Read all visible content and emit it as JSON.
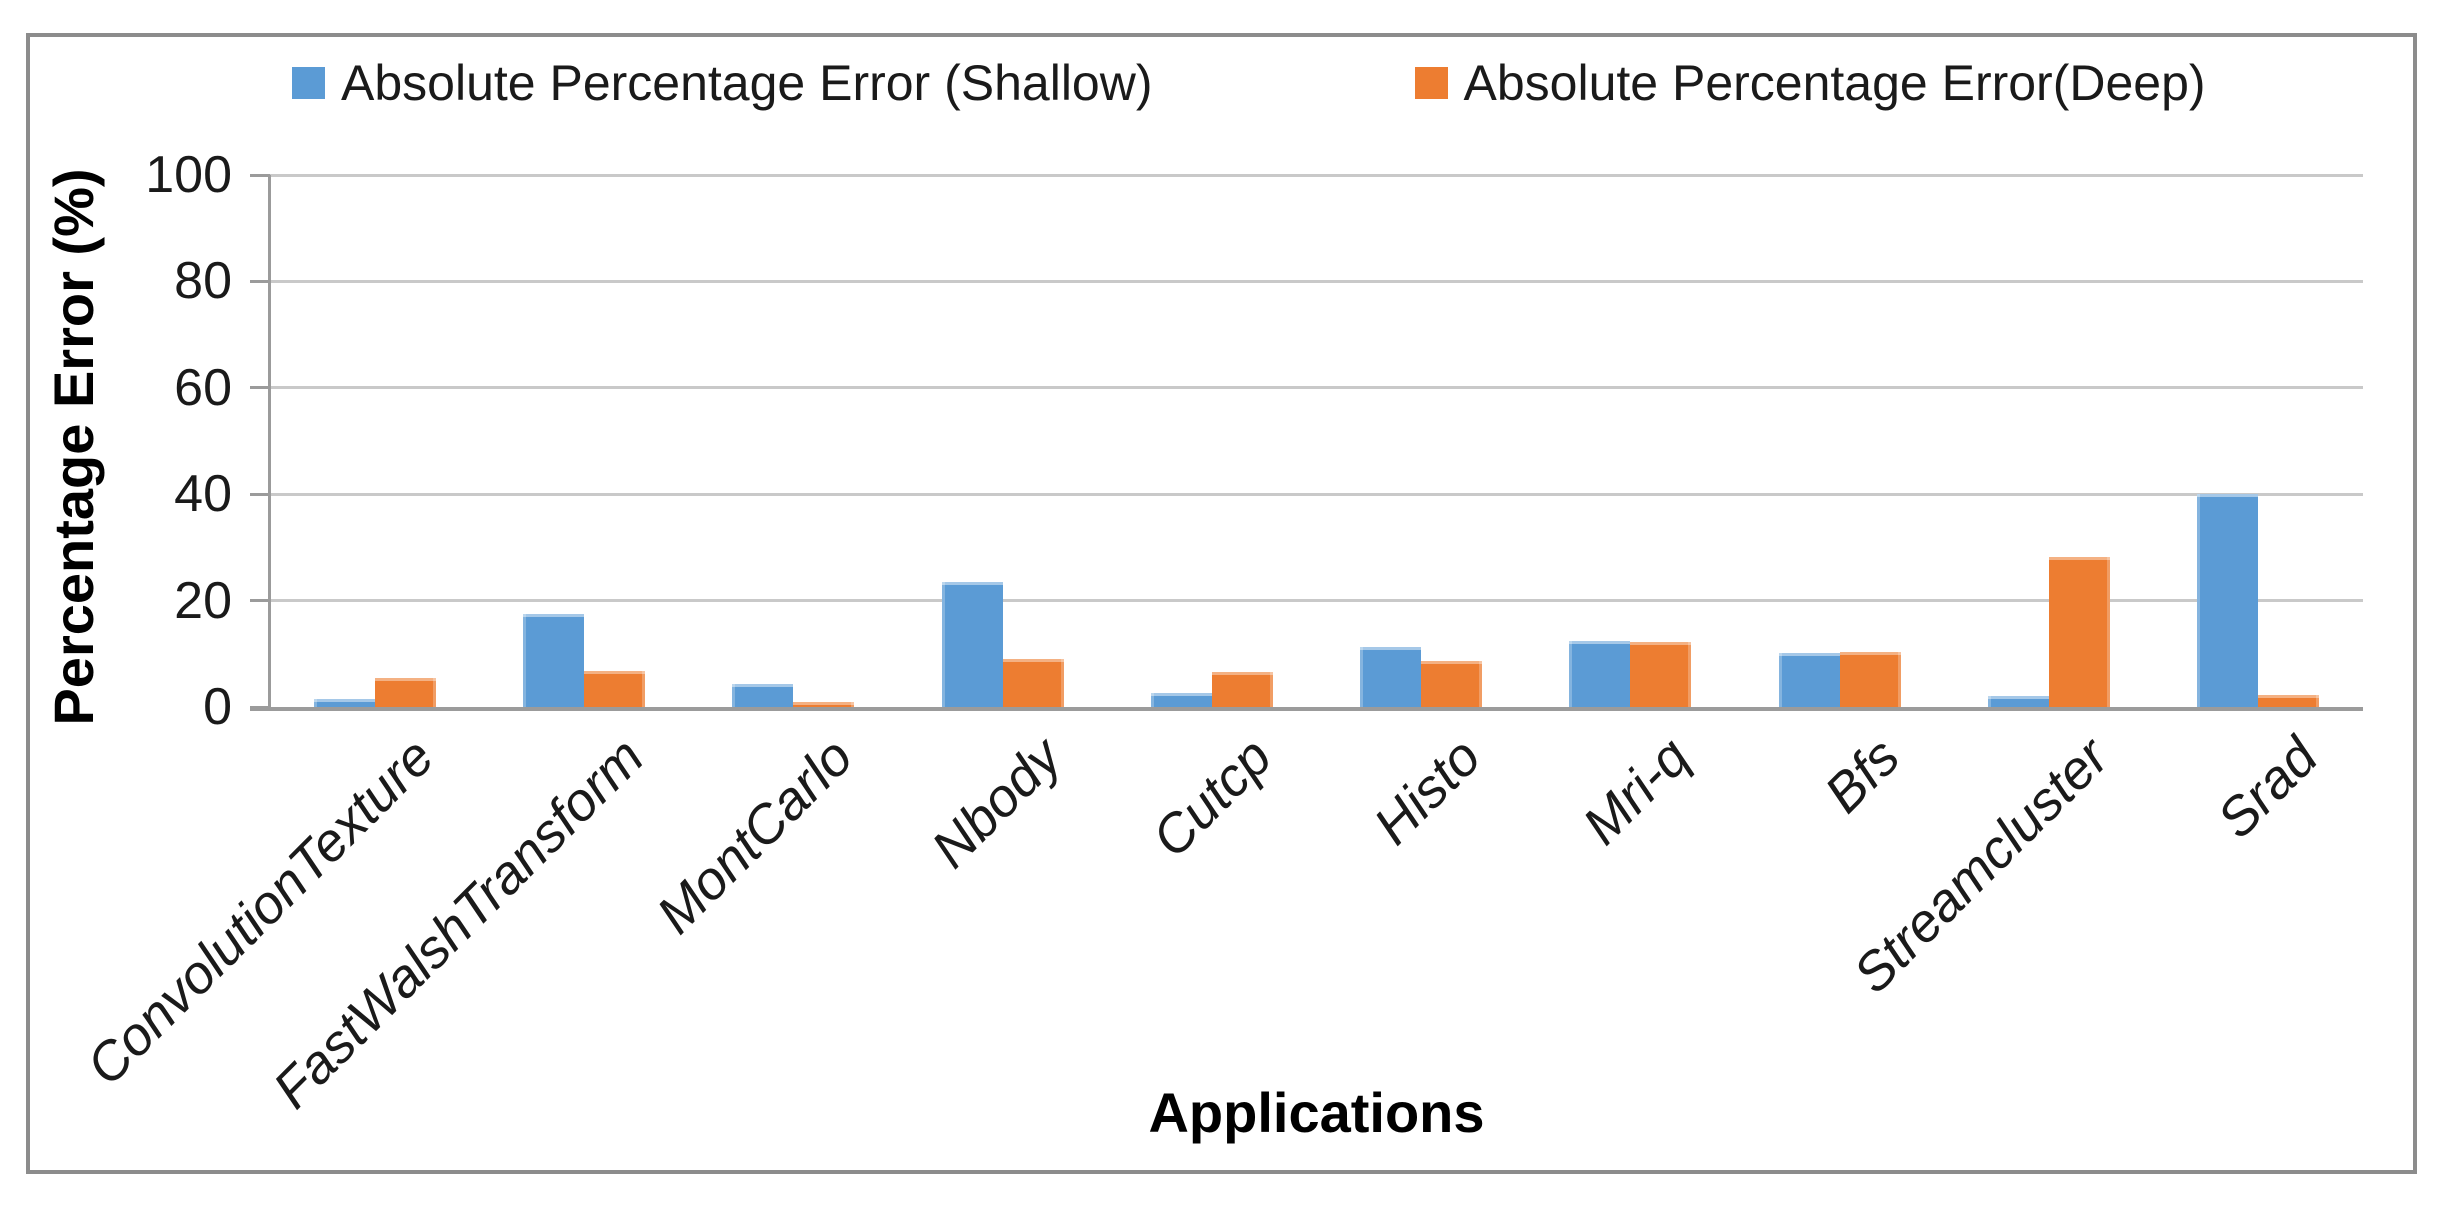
{
  "chart_data": {
    "type": "bar",
    "title": "",
    "categories": [
      "ConvolutionTexture",
      "FastWalshTransform",
      "MontCarlo",
      "Nbody",
      "Cutcp",
      "Histo",
      "Mri-q",
      "Bfs",
      "Streamcluster",
      "Srad"
    ],
    "series": [
      {
        "name": "Absolute Percentage Error (Shallow)",
        "color": "#5B9BD5",
        "values": [
          1.5,
          17.5,
          4.3,
          23.5,
          2.6,
          11.3,
          12.4,
          10.2,
          2.0,
          40.0
        ]
      },
      {
        "name": "Absolute Percentage Error(Deep)",
        "color": "#ED7D31",
        "values": [
          5.4,
          6.8,
          0.9,
          9.0,
          6.5,
          8.7,
          12.2,
          10.3,
          28.2,
          2.3
        ]
      }
    ],
    "xlabel": "Applications",
    "ylabel": "Percentage Error (%)",
    "ylim": [
      0,
      100
    ],
    "yticks": [
      0,
      20,
      40,
      60,
      80,
      100
    ],
    "grid": true,
    "legend_position": "top",
    "colors": {
      "gridline": "#C9C9C9",
      "axis": "#9B9B9B",
      "frame_border": "#8C8C8C",
      "text": "#1A1A1A"
    }
  }
}
